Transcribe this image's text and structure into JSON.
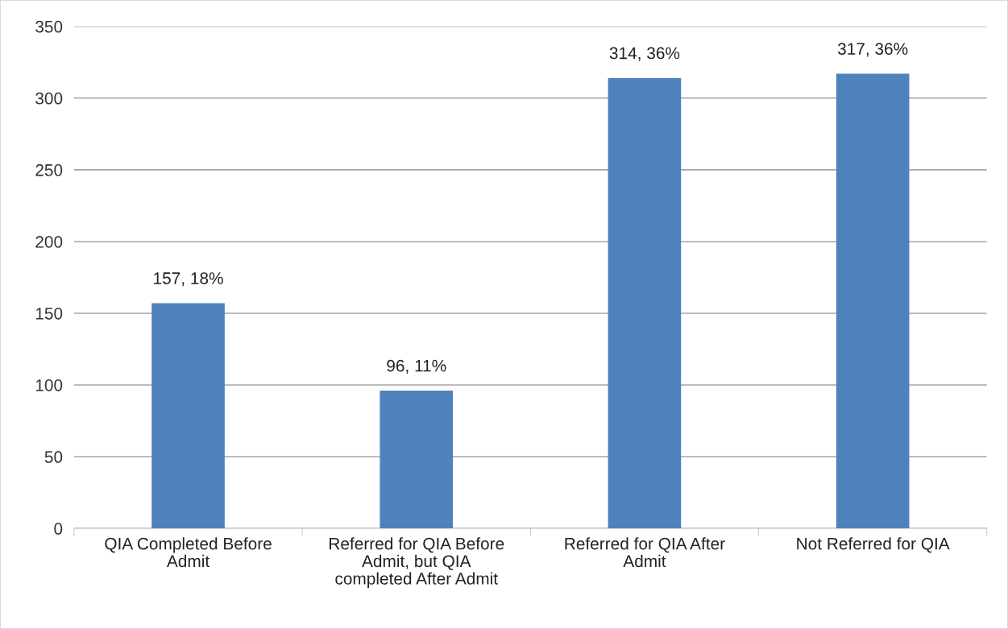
{
  "chart_data": {
    "type": "bar",
    "categories": [
      "QIA Completed Before\nAdmit",
      "Referred for QIA Before\nAdmit, but QIA\ncompleted After Admit",
      "Referred for QIA After\nAdmit",
      "Not Referred for QIA"
    ],
    "values": [
      157,
      96,
      314,
      317
    ],
    "value_labels": [
      "157, 18%",
      "96, 11%",
      "314, 36%",
      "317, 36%"
    ],
    "color": "#4f81bd",
    "ylim": [
      0,
      350
    ],
    "yticks": [
      0,
      50,
      100,
      150,
      200,
      250,
      300,
      350
    ],
    "grid": "y",
    "legend": false
  }
}
